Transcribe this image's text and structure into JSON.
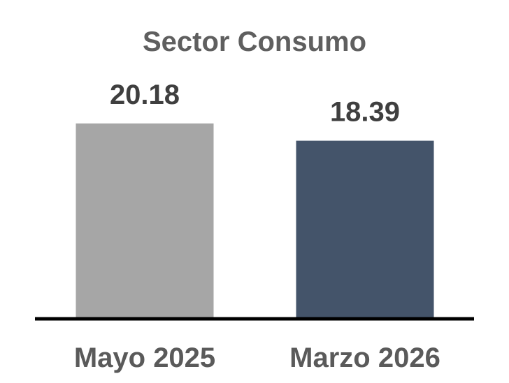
{
  "chart_data": {
    "type": "bar",
    "title": "Sector Consumo",
    "categories": [
      "Mayo 2025",
      "Marzo 2026"
    ],
    "values": [
      20.18,
      18.39
    ],
    "value_labels": [
      "20.18",
      "18.39"
    ],
    "colors": [
      "#a6a6a6",
      "#44546a"
    ],
    "ylim": [
      0,
      20.18
    ],
    "grid": false,
    "legend": "none"
  }
}
